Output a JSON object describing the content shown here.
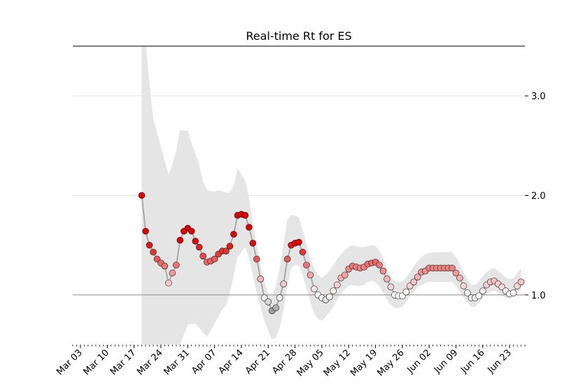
{
  "chart_data": {
    "type": "rt",
    "title": "Real-time Rt for ES",
    "x": [
      "Mar 19",
      "Mar 20",
      "Mar 21",
      "Mar 22",
      "Mar 23",
      "Mar 24",
      "Mar 25",
      "Mar 26",
      "Mar 27",
      "Mar 28",
      "Mar 29",
      "Mar 30",
      "Mar 31",
      "Apr 01",
      "Apr 02",
      "Apr 03",
      "Apr 04",
      "Apr 05",
      "Apr 06",
      "Apr 07",
      "Apr 08",
      "Apr 09",
      "Apr 10",
      "Apr 11",
      "Apr 12",
      "Apr 13",
      "Apr 14",
      "Apr 15",
      "Apr 16",
      "Apr 17",
      "Apr 18",
      "Apr 19",
      "Apr 20",
      "Apr 21",
      "Apr 22",
      "Apr 23",
      "Apr 24",
      "Apr 25",
      "Apr 26",
      "Apr 27",
      "Apr 28",
      "Apr 29",
      "Apr 30",
      "May 01",
      "May 02",
      "May 03",
      "May 04",
      "May 05",
      "May 06",
      "May 07",
      "May 08",
      "May 09",
      "May 10",
      "May 11",
      "May 12",
      "May 13",
      "May 14",
      "May 15",
      "May 16",
      "May 17",
      "May 18",
      "May 19",
      "May 20",
      "May 21",
      "May 22",
      "May 23",
      "May 24",
      "May 25",
      "May 26",
      "May 27",
      "May 28",
      "May 29",
      "May 30",
      "May 31",
      "Jun 01",
      "Jun 02",
      "Jun 03",
      "Jun 04",
      "Jun 05",
      "Jun 06",
      "Jun 07",
      "Jun 08",
      "Jun 09",
      "Jun 10",
      "Jun 11",
      "Jun 12",
      "Jun 13",
      "Jun 14",
      "Jun 15",
      "Jun 16",
      "Jun 17",
      "Jun 18",
      "Jun 19",
      "Jun 20",
      "Jun 21",
      "Jun 22",
      "Jun 23",
      "Jun 24",
      "Jun 25",
      "Jun 26"
    ],
    "values": [
      2.0,
      1.64,
      1.5,
      1.43,
      1.36,
      1.32,
      1.29,
      1.12,
      1.22,
      1.3,
      1.55,
      1.64,
      1.67,
      1.64,
      1.54,
      1.48,
      1.39,
      1.33,
      1.34,
      1.36,
      1.41,
      1.44,
      1.44,
      1.49,
      1.61,
      1.8,
      1.81,
      1.8,
      1.68,
      1.52,
      1.36,
      1.16,
      0.97,
      0.93,
      0.84,
      0.87,
      0.97,
      1.11,
      1.36,
      1.5,
      1.52,
      1.53,
      1.43,
      1.3,
      1.2,
      1.06,
      1.0,
      0.97,
      0.95,
      0.98,
      1.04,
      1.1,
      1.17,
      1.2,
      1.26,
      1.29,
      1.28,
      1.27,
      1.28,
      1.31,
      1.32,
      1.33,
      1.3,
      1.24,
      1.16,
      1.08,
      1.0,
      0.99,
      0.99,
      1.03,
      1.09,
      1.13,
      1.18,
      1.23,
      1.24,
      1.27,
      1.27,
      1.27,
      1.27,
      1.27,
      1.27,
      1.27,
      1.22,
      1.17,
      1.09,
      1.02,
      0.97,
      0.97,
      0.99,
      1.04,
      1.1,
      1.13,
      1.14,
      1.11,
      1.08,
      1.04,
      1.01,
      1.02,
      1.09,
      1.13
    ],
    "band": {
      "color": "#e5e5e5",
      "upper": [
        4.2,
        3.55,
        3.12,
        2.77,
        2.63,
        2.49,
        2.35,
        2.21,
        2.31,
        2.45,
        2.66,
        2.65,
        2.65,
        2.52,
        2.42,
        2.31,
        2.14,
        2.06,
        2.04,
        2.04,
        2.05,
        2.04,
        2.03,
        2.03,
        2.1,
        2.27,
        2.21,
        2.15,
        1.97,
        1.72,
        1.51,
        1.29,
        1.13,
        1.02,
        0.99,
        1.09,
        1.27,
        1.51,
        1.76,
        1.8,
        1.8,
        1.78,
        1.65,
        1.51,
        1.37,
        1.27,
        1.2,
        1.17,
        1.2,
        1.24,
        1.3,
        1.36,
        1.41,
        1.45,
        1.48,
        1.5,
        1.49,
        1.48,
        1.48,
        1.49,
        1.5,
        1.49,
        1.44,
        1.37,
        1.27,
        1.18,
        1.14,
        1.13,
        1.14,
        1.17,
        1.23,
        1.29,
        1.34,
        1.38,
        1.41,
        1.42,
        1.43,
        1.43,
        1.43,
        1.43,
        1.43,
        1.43,
        1.38,
        1.31,
        1.23,
        1.16,
        1.1,
        1.1,
        1.14,
        1.19,
        1.23,
        1.26,
        1.27,
        1.24,
        1.21,
        1.17,
        1.16,
        1.17,
        1.22,
        1.27
      ],
      "lower": [
        0.2,
        0.2,
        0.25,
        0.28,
        0.3,
        0.32,
        0.34,
        0.36,
        0.4,
        0.45,
        0.5,
        0.6,
        0.7,
        0.71,
        0.71,
        0.67,
        0.62,
        0.58,
        0.64,
        0.71,
        0.78,
        0.85,
        0.9,
        1.02,
        1.2,
        1.38,
        1.43,
        1.48,
        1.37,
        1.2,
        1.02,
        0.88,
        0.74,
        0.64,
        0.55,
        0.57,
        0.67,
        0.85,
        1.09,
        1.27,
        1.3,
        1.29,
        1.2,
        1.06,
        0.93,
        0.81,
        0.76,
        0.74,
        0.78,
        0.83,
        0.88,
        0.95,
        1.01,
        1.06,
        1.09,
        1.1,
        1.09,
        1.09,
        1.1,
        1.13,
        1.14,
        1.13,
        1.09,
        1.02,
        0.95,
        0.9,
        0.87,
        0.87,
        0.88,
        0.93,
        0.99,
        1.03,
        1.08,
        1.1,
        1.12,
        1.13,
        1.13,
        1.13,
        1.13,
        1.13,
        1.13,
        1.13,
        1.09,
        1.03,
        0.97,
        0.92,
        0.88,
        0.88,
        0.92,
        0.97,
        1.01,
        1.03,
        1.04,
        1.02,
        0.99,
        0.97,
        0.97,
        0.99,
        1.02,
        1.06
      ]
    },
    "line_color": "#aaaaaa",
    "hline": 1,
    "xlim": [
      "Mar 01",
      "Jun 27"
    ],
    "xticks": [
      "Mar 03",
      "Mar 10",
      "Mar 17",
      "Mar 24",
      "Mar 31",
      "Apr 07",
      "Apr 14",
      "Apr 21",
      "Apr 28",
      "May 05",
      "May 12",
      "May 19",
      "May 26",
      "Jun 02",
      "Jun 09",
      "Jun 16",
      "Jun 23"
    ],
    "ylim": [
      0.5,
      3.5
    ],
    "yticks": [
      {
        "value": 1,
        "label": "1.0"
      },
      {
        "value": 2,
        "label": "2.0"
      },
      {
        "value": 3,
        "label": "3.0"
      }
    ],
    "grid": true
  }
}
